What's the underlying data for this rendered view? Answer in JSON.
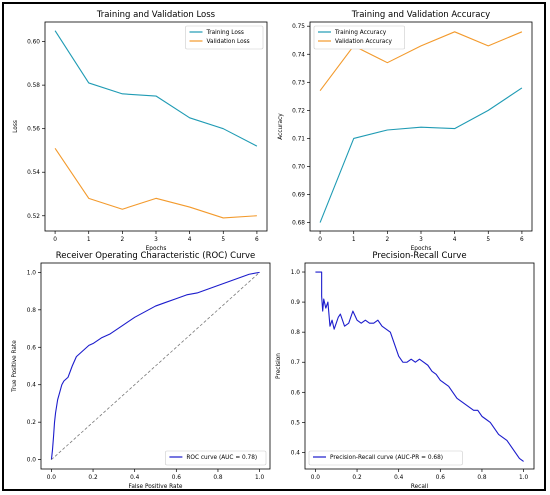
{
  "colors": {
    "train": "#1f9bb4",
    "val": "#f39a2c",
    "roc": "#1c1ccc",
    "diag": "#7a7a7a"
  },
  "chart_data": [
    {
      "type": "line",
      "title": "Training and Validation Loss",
      "xlabel": "Epochs",
      "ylabel": "Loss",
      "x": [
        0,
        1,
        2,
        3,
        4,
        5,
        6
      ],
      "xticks": [
        "0",
        "1",
        "2",
        "3",
        "4",
        "5",
        "6"
      ],
      "xlim": [
        -0.3,
        6.3
      ],
      "ylim": [
        0.513,
        0.609
      ],
      "yticks": [
        0.52,
        0.54,
        0.56,
        0.58,
        0.6
      ],
      "yticklabels": [
        "0.52",
        "0.54",
        "0.56",
        "0.58",
        "0.60"
      ],
      "legend": "top-right",
      "series": [
        {
          "name": "Training Loss",
          "color": "train",
          "values": [
            0.605,
            0.581,
            0.576,
            0.575,
            0.565,
            0.56,
            0.552
          ]
        },
        {
          "name": "Validation Loss",
          "color": "val",
          "values": [
            0.551,
            0.528,
            0.523,
            0.528,
            0.524,
            0.519,
            0.52
          ]
        }
      ]
    },
    {
      "type": "line",
      "title": "Training and Validation Accuracy",
      "xlabel": "Epochs",
      "ylabel": "Accuracy",
      "x": [
        0,
        1,
        2,
        3,
        4,
        5,
        6
      ],
      "xticks": [
        "0",
        "1",
        "2",
        "3",
        "4",
        "5",
        "6"
      ],
      "xlim": [
        -0.3,
        6.3
      ],
      "ylim": [
        0.677,
        0.7515
      ],
      "yticks": [
        0.68,
        0.69,
        0.7,
        0.71,
        0.72,
        0.73,
        0.74,
        0.75
      ],
      "yticklabels": [
        "0.68",
        "0.69",
        "0.70",
        "0.71",
        "0.72",
        "0.73",
        "0.74",
        "0.75"
      ],
      "legend": "top-left",
      "series": [
        {
          "name": "Training Accuracy",
          "color": "train",
          "values": [
            0.68,
            0.71,
            0.713,
            0.714,
            0.7135,
            0.72,
            0.728
          ]
        },
        {
          "name": "Validation Accuracy",
          "color": "val",
          "values": [
            0.727,
            0.743,
            0.737,
            0.743,
            0.748,
            0.743,
            0.748
          ]
        }
      ]
    },
    {
      "type": "line",
      "title": "Receiver Operating Characteristic (ROC) Curve",
      "xlabel": "False Positive Rate",
      "ylabel": "True Positive Rate",
      "xlim": [
        -0.05,
        1.05
      ],
      "ylim": [
        -0.05,
        1.05
      ],
      "xticks": [
        0,
        0.2,
        0.4,
        0.6,
        0.8,
        1.0
      ],
      "xticklabels": [
        "0.0",
        "0.2",
        "0.4",
        "0.6",
        "0.8",
        "1.0"
      ],
      "yticks": [
        0,
        0.2,
        0.4,
        0.6,
        0.8,
        1.0
      ],
      "yticklabels": [
        "0.0",
        "0.2",
        "0.4",
        "0.6",
        "0.8",
        "1.0"
      ],
      "legend": "bottom-right",
      "series": [
        {
          "name": "ROC curve (AUC = 0.78)",
          "color": "roc",
          "x": [
            0,
            0.005,
            0.01,
            0.015,
            0.02,
            0.03,
            0.04,
            0.05,
            0.06,
            0.08,
            0.1,
            0.12,
            0.14,
            0.16,
            0.18,
            0.2,
            0.24,
            0.28,
            0.32,
            0.36,
            0.4,
            0.45,
            0.5,
            0.55,
            0.6,
            0.65,
            0.7,
            0.75,
            0.8,
            0.85,
            0.9,
            0.95,
            1.0
          ],
          "y": [
            0,
            0.05,
            0.12,
            0.2,
            0.25,
            0.32,
            0.36,
            0.4,
            0.42,
            0.44,
            0.5,
            0.55,
            0.57,
            0.59,
            0.61,
            0.62,
            0.65,
            0.67,
            0.7,
            0.73,
            0.76,
            0.79,
            0.82,
            0.84,
            0.86,
            0.88,
            0.89,
            0.91,
            0.93,
            0.95,
            0.97,
            0.99,
            1.0
          ]
        },
        {
          "name": "",
          "color": "diag",
          "dashed": true,
          "x": [
            0,
            1
          ],
          "y": [
            0,
            1
          ]
        }
      ]
    },
    {
      "type": "line",
      "title": "Precision-Recall Curve",
      "xlabel": "Recall",
      "ylabel": "Precision",
      "xlim": [
        -0.05,
        1.05
      ],
      "ylim": [
        0.345,
        1.03
      ],
      "xticks": [
        0,
        0.2,
        0.4,
        0.6,
        0.8,
        1.0
      ],
      "xticklabels": [
        "0.0",
        "0.2",
        "0.4",
        "0.6",
        "0.8",
        "1.0"
      ],
      "yticks": [
        0.4,
        0.5,
        0.6,
        0.7,
        0.8,
        0.9,
        1.0
      ],
      "yticklabels": [
        "0.4",
        "0.5",
        "0.6",
        "0.7",
        "0.8",
        "0.9",
        "1.0"
      ],
      "legend": "bottom-left",
      "series": [
        {
          "name": "Precision-Recall curve (AUC-PR = 0.68)",
          "color": "roc",
          "x": [
            0,
            0.01,
            0.02,
            0.03,
            0.03,
            0.035,
            0.04,
            0.05,
            0.06,
            0.07,
            0.08,
            0.09,
            0.1,
            0.11,
            0.12,
            0.14,
            0.16,
            0.18,
            0.2,
            0.22,
            0.24,
            0.26,
            0.28,
            0.3,
            0.32,
            0.34,
            0.36,
            0.38,
            0.4,
            0.42,
            0.44,
            0.46,
            0.48,
            0.5,
            0.52,
            0.54,
            0.56,
            0.58,
            0.6,
            0.62,
            0.64,
            0.66,
            0.68,
            0.7,
            0.72,
            0.74,
            0.76,
            0.78,
            0.8,
            0.82,
            0.84,
            0.86,
            0.88,
            0.9,
            0.92,
            0.94,
            0.96,
            0.98,
            1.0
          ],
          "y": [
            1.0,
            1.0,
            1.0,
            1.0,
            0.92,
            0.87,
            0.91,
            0.88,
            0.9,
            0.82,
            0.84,
            0.81,
            0.83,
            0.85,
            0.86,
            0.82,
            0.83,
            0.87,
            0.84,
            0.83,
            0.84,
            0.83,
            0.83,
            0.84,
            0.82,
            0.81,
            0.8,
            0.76,
            0.72,
            0.7,
            0.7,
            0.71,
            0.7,
            0.71,
            0.7,
            0.69,
            0.67,
            0.66,
            0.64,
            0.63,
            0.62,
            0.6,
            0.58,
            0.57,
            0.56,
            0.55,
            0.54,
            0.54,
            0.52,
            0.51,
            0.5,
            0.48,
            0.46,
            0.45,
            0.44,
            0.42,
            0.4,
            0.38,
            0.37
          ]
        }
      ]
    }
  ]
}
